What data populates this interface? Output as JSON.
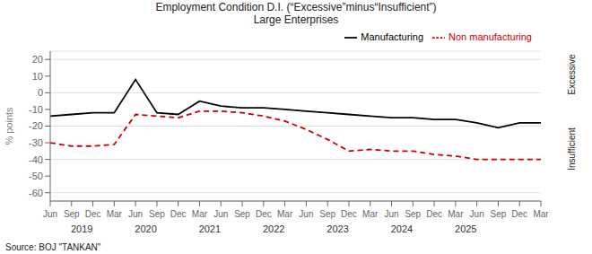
{
  "chart_data": {
    "type": "line",
    "title": "Employment Condition  D.I.  (“Excessive”minus“Insufficient”)",
    "subtitle": "Large Enterprises",
    "ylabel": "% points",
    "categories": [
      "Jun",
      "Sep",
      "Dec",
      "Mar",
      "Jun",
      "Sep",
      "Dec",
      "Mar",
      "Jun",
      "Sep",
      "Dec",
      "Mar",
      "Jun",
      "Sep",
      "Dec",
      "Mar",
      "Jun",
      "Sep",
      "Dec",
      "Mar",
      "Jun",
      "Sep",
      "Dec",
      "Mar"
    ],
    "series": [
      {
        "name": "Manufacturing",
        "color": "#000000",
        "line_style": "solid",
        "values": [
          -14,
          -13,
          -12,
          -12,
          8,
          -12,
          -13,
          -5,
          -8,
          -9,
          -9,
          -10,
          -11,
          -12,
          -13,
          -14,
          -15,
          -15,
          -16,
          -16,
          -18,
          -21,
          -18,
          -18
        ]
      },
      {
        "name": "Non manufacturing",
        "color": "#cc0000",
        "line_style": "dashed",
        "values": [
          -30,
          -32,
          -32,
          -31,
          -13,
          -14,
          -15,
          -11,
          -11,
          -12,
          -14,
          -17,
          -22,
          -28,
          -35,
          -34,
          -35,
          -35,
          -37,
          -38,
          -40,
          -40,
          -40,
          -40
        ]
      }
    ],
    "ylim": [
      -65,
      25
    ],
    "yticks": [
      -60,
      -50,
      -40,
      -30,
      -20,
      -10,
      0,
      10,
      20
    ],
    "grid": true,
    "legend": "upper right",
    "year_labels": [
      "2019",
      "2020",
      "2021",
      "2022",
      "2023",
      "2024",
      "2025"
    ],
    "annotations": [
      "Excessive",
      "Insufficient"
    ],
    "source": "Source: BOJ \"TANKAN\""
  }
}
